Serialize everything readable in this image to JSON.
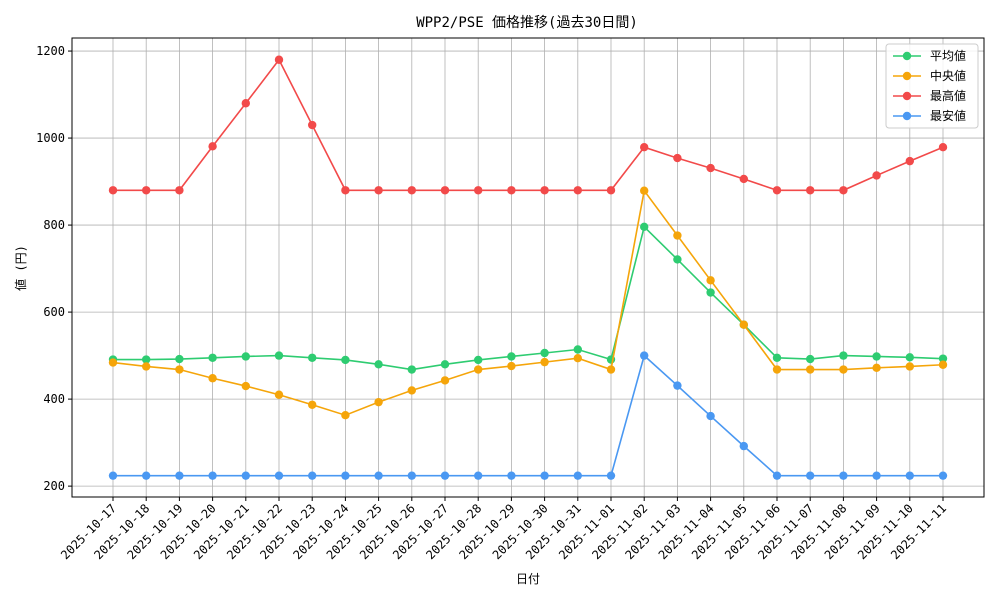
{
  "chart_data": {
    "type": "line",
    "title": "WPP2/PSE 価格推移(過去30日間)",
    "xlabel": "日付",
    "ylabel": "値 (円)",
    "ylim": [
      175,
      1230
    ],
    "yticks": [
      200,
      400,
      600,
      800,
      1000,
      1200
    ],
    "grid": true,
    "legend_position": "top-right",
    "categories": [
      "2025-10-17",
      "2025-10-18",
      "2025-10-19",
      "2025-10-20",
      "2025-10-21",
      "2025-10-22",
      "2025-10-23",
      "2025-10-24",
      "2025-10-25",
      "2025-10-26",
      "2025-10-27",
      "2025-10-28",
      "2025-10-29",
      "2025-10-30",
      "2025-10-31",
      "2025-11-01",
      "2025-11-02",
      "2025-11-03",
      "2025-11-04",
      "2025-11-05",
      "2025-11-06",
      "2025-11-07",
      "2025-11-08",
      "2025-11-09",
      "2025-11-10",
      "2025-11-11"
    ],
    "series": [
      {
        "name": "平均値",
        "color": "#2ecc71",
        "values": [
          491,
          491,
          492,
          495,
          498,
          500,
          495,
          490,
          480,
          468,
          480,
          490,
          498,
          506,
          514,
          491,
          796,
          721,
          645,
          571,
          495,
          492,
          500,
          498,
          496,
          493
        ]
      },
      {
        "name": "中央値",
        "color": "#f5a50a",
        "values": [
          484,
          475,
          468,
          448,
          430,
          410,
          387,
          363,
          393,
          420,
          443,
          468,
          476,
          485,
          494,
          468,
          879,
          776,
          673,
          571,
          468,
          468,
          468,
          472,
          475,
          479
        ]
      },
      {
        "name": "最高値",
        "color": "#f24a4a",
        "values": [
          880,
          880,
          880,
          981,
          1080,
          1180,
          1030,
          880,
          880,
          880,
          880,
          880,
          880,
          880,
          880,
          880,
          979,
          954,
          931,
          906,
          880,
          880,
          880,
          914,
          947,
          979
        ]
      },
      {
        "name": "最安値",
        "color": "#4a98f2",
        "values": [
          224,
          224,
          224,
          224,
          224,
          224,
          224,
          224,
          224,
          224,
          224,
          224,
          224,
          224,
          224,
          224,
          500,
          431,
          361,
          292,
          224,
          224,
          224,
          224,
          224,
          224
        ]
      }
    ]
  }
}
